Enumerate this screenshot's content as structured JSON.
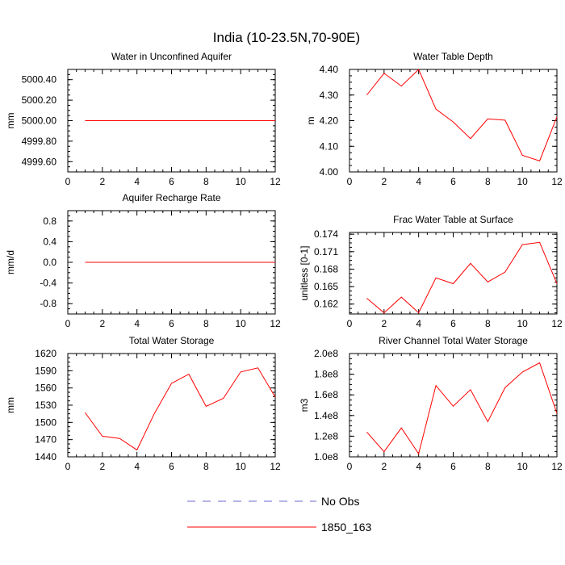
{
  "figure": {
    "title": "India (10-23.5N,70-90E)"
  },
  "legend": {
    "entries": [
      {
        "label": "No Obs",
        "color": "#6a6ad0",
        "dash": true
      },
      {
        "label": "1850_163",
        "color": "#ff0000",
        "dash": false
      }
    ]
  },
  "chart_data": [
    {
      "type": "line",
      "title": "Water in Unconfined Aquifer",
      "xlabel": "",
      "ylabel": "mm",
      "xlim": [
        0,
        12
      ],
      "ylim": [
        4999.5,
        5000.5
      ],
      "xticks": [
        0,
        2,
        4,
        6,
        8,
        10,
        12
      ],
      "yticks": [
        4999.6,
        4999.8,
        5000.0,
        5000.2,
        5000.4
      ],
      "ytick_labels": [
        "4999.60",
        "4999.80",
        "5000.00",
        "5000.20",
        "5000.40"
      ],
      "series": [
        {
          "name": "1850_163",
          "color": "#ff0000",
          "x": [
            1,
            2,
            3,
            4,
            5,
            6,
            7,
            8,
            9,
            10,
            11,
            12
          ],
          "y": [
            5000,
            5000,
            5000,
            5000,
            5000,
            5000,
            5000,
            5000,
            5000,
            5000,
            5000,
            5000
          ]
        }
      ]
    },
    {
      "type": "line",
      "title": "Water Table Depth",
      "xlabel": "",
      "ylabel": "m",
      "xlim": [
        0,
        12
      ],
      "ylim": [
        4.0,
        4.4
      ],
      "xticks": [
        0,
        2,
        4,
        6,
        8,
        10,
        12
      ],
      "yticks": [
        4.0,
        4.1,
        4.2,
        4.3,
        4.4
      ],
      "ytick_labels": [
        "4.00",
        "4.10",
        "4.20",
        "4.30",
        "4.40"
      ],
      "series": [
        {
          "name": "1850_163",
          "color": "#ff0000",
          "x": [
            1,
            2,
            3,
            4,
            5,
            6,
            7,
            8,
            9,
            10,
            11,
            12
          ],
          "y": [
            4.3,
            4.385,
            4.335,
            4.4,
            4.245,
            4.195,
            4.13,
            4.207,
            4.202,
            4.065,
            4.043,
            4.215
          ]
        }
      ]
    },
    {
      "type": "line",
      "title": "Aquifer Recharge Rate",
      "xlabel": "",
      "ylabel": "mm/d",
      "xlim": [
        0,
        12
      ],
      "ylim": [
        -1.0,
        1.0
      ],
      "xticks": [
        0,
        2,
        4,
        6,
        8,
        10,
        12
      ],
      "yticks": [
        -0.8,
        -0.4,
        0.0,
        0.4,
        0.8
      ],
      "ytick_labels": [
        "-0.8",
        "-0.4",
        "0.0",
        "0.4",
        "0.8"
      ],
      "series": [
        {
          "name": "1850_163",
          "color": "#ff0000",
          "x": [
            1,
            2,
            3,
            4,
            5,
            6,
            7,
            8,
            9,
            10,
            11,
            12
          ],
          "y": [
            0,
            0,
            0,
            0,
            0,
            0,
            0,
            0,
            0,
            0,
            0,
            0
          ]
        }
      ]
    },
    {
      "type": "line",
      "title": "Frac Water Table at Surface",
      "xlabel": "",
      "ylabel": "unitless [0-1]",
      "xlim": [
        0,
        12
      ],
      "ylim": [
        0.1603,
        0.1743
      ],
      "xticks": [
        0,
        2,
        4,
        6,
        8,
        10,
        12
      ],
      "yticks": [
        0.162,
        0.165,
        0.168,
        0.171,
        0.174
      ],
      "ytick_labels": [
        "0.162",
        "0.165",
        "0.168",
        "0.171",
        "0.174"
      ],
      "series": [
        {
          "name": "1850_163",
          "color": "#ff0000",
          "x": [
            1,
            2,
            3,
            4,
            5,
            6,
            7,
            8,
            9,
            10,
            11,
            12
          ],
          "y": [
            0.163,
            0.1605,
            0.1632,
            0.1605,
            0.1665,
            0.1655,
            0.169,
            0.1658,
            0.1675,
            0.1722,
            0.1726,
            0.1655
          ]
        }
      ]
    },
    {
      "type": "line",
      "title": "Total Water Storage",
      "xlabel": "",
      "ylabel": "mm",
      "xlim": [
        0,
        12
      ],
      "ylim": [
        1440,
        1620
      ],
      "xticks": [
        0,
        2,
        4,
        6,
        8,
        10,
        12
      ],
      "yticks": [
        1440,
        1470,
        1500,
        1530,
        1560,
        1590,
        1620
      ],
      "ytick_labels": [
        "1440",
        "1470",
        "1500",
        "1530",
        "1560",
        "1590",
        "1620"
      ],
      "series": [
        {
          "name": "1850_163",
          "color": "#ff0000",
          "x": [
            1,
            2,
            3,
            4,
            5,
            6,
            7,
            8,
            9,
            10,
            11,
            12
          ],
          "y": [
            1517,
            1476,
            1472,
            1452,
            1515,
            1568,
            1584,
            1528,
            1542,
            1588,
            1595,
            1544
          ]
        }
      ]
    },
    {
      "type": "line",
      "title": "River Channel Total Water Storage",
      "xlabel": "",
      "ylabel": "m3",
      "xlim": [
        0,
        12
      ],
      "ylim": [
        100000000.0,
        200000000.0
      ],
      "xticks": [
        0,
        2,
        4,
        6,
        8,
        10,
        12
      ],
      "yticks": [
        100000000.0,
        120000000.0,
        140000000.0,
        160000000.0,
        180000000.0,
        200000000.0
      ],
      "ytick_labels": [
        "1.0e8",
        "1.2e8",
        "1.4e8",
        "1.6e8",
        "1.8e8",
        "2.0e8"
      ],
      "series": [
        {
          "name": "1850_163",
          "color": "#ff0000",
          "x": [
            1,
            2,
            3,
            4,
            5,
            6,
            7,
            8,
            9,
            10,
            11,
            12
          ],
          "y": [
            124000000.0,
            105000000.0,
            128000000.0,
            103000000.0,
            169000000.0,
            149000000.0,
            165000000.0,
            134000000.0,
            167000000.0,
            182000000.0,
            191000000.0,
            142000000.0
          ]
        }
      ]
    }
  ]
}
